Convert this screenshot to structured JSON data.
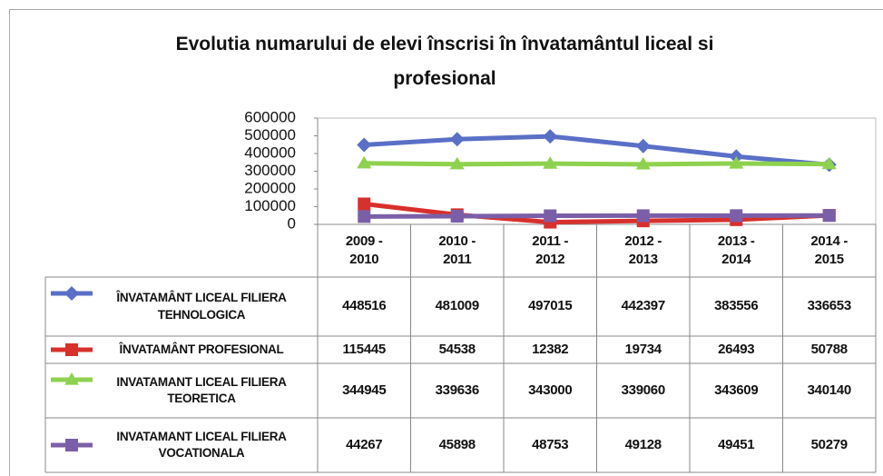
{
  "chart_data": {
    "type": "line",
    "title": "Evolutia numarului de elevi înscrisi în învatamântul liceal si profesional",
    "categories": [
      "2009 - 2010",
      "2010 - 2011",
      "2011 - 2012",
      "2012 - 2013",
      "2013 - 2014",
      "2014 - 2015"
    ],
    "ylim": [
      0,
      600000
    ],
    "yticks": [
      0,
      100000,
      200000,
      300000,
      400000,
      500000,
      600000
    ],
    "grid": false,
    "series": [
      {
        "name": "ÎNVATAMÂNT LICEAL FILIERA TEHNOLOGICA",
        "color": "#5a6fc6",
        "marker": "diamond",
        "values": [
          448516,
          481009,
          497015,
          442397,
          383556,
          336653
        ]
      },
      {
        "name": "ÎNVATAMÂNT PROFESIONAL",
        "color": "#d8302c",
        "marker": "square",
        "values": [
          115445,
          54538,
          12382,
          19734,
          26493,
          50788
        ]
      },
      {
        "name": "INVATAMANT LICEAL FILIERA TEORETICA",
        "color": "#8ed14e",
        "marker": "triangle",
        "values": [
          344945,
          339636,
          343000,
          339060,
          343609,
          340140
        ]
      },
      {
        "name": "INVATAMANT LICEAL FILIERA VOCATIONALA",
        "color": "#7a5fa8",
        "marker": "square",
        "values": [
          44267,
          45898,
          48753,
          49128,
          49451,
          50279
        ]
      }
    ]
  }
}
